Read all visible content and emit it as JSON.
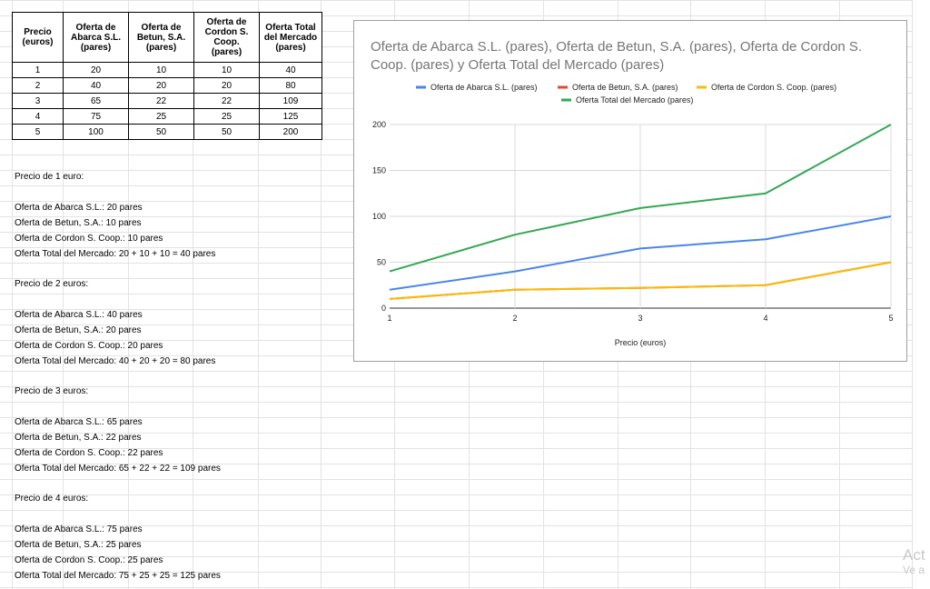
{
  "table": {
    "headers": [
      "Precio (euros)",
      "Oferta de Abarca S.L. (pares)",
      "Oferta de Betun, S.A. (pares)",
      "Oferta de Cordon S. Coop. (pares)",
      "Oferta Total del Mercado (pares)"
    ],
    "header_lines": [
      [
        "Precio",
        "(euros)"
      ],
      [
        "Oferta de",
        "Abarca S.L.",
        "(pares)"
      ],
      [
        "Oferta de",
        "Betun, S.A.",
        "(pares)"
      ],
      [
        "Oferta de",
        "Cordon S.",
        "Coop.",
        "(pares)"
      ],
      [
        "Oferta Total",
        "del Mercado",
        "(pares)"
      ]
    ],
    "rows": [
      [
        "1",
        "20",
        "10",
        "10",
        "40"
      ],
      [
        "2",
        "40",
        "20",
        "20",
        "80"
      ],
      [
        "3",
        "65",
        "22",
        "22",
        "109"
      ],
      [
        "4",
        "75",
        "25",
        "25",
        "125"
      ],
      [
        "5",
        "100",
        "50",
        "50",
        "200"
      ]
    ]
  },
  "notes": [
    "Precio de 1 euro:",
    "Oferta de Abarca S.L.: 20 pares",
    "Oferta de Betun, S.A.: 10 pares",
    "Oferta de Cordon S. Coop.: 10 pares",
    "Oferta Total del Mercado: 20 + 10 + 10 = 40 pares",
    "Precio de 2 euros:",
    "Oferta de Abarca S.L.: 40 pares",
    "Oferta de Betun, S.A.: 20 pares",
    "Oferta de Cordon S. Coop.: 20 pares",
    "Oferta Total del Mercado: 40 + 20 + 20 = 80 pares",
    "Precio de 3 euros:",
    "Oferta de Abarca S.L.: 65 pares",
    "Oferta de Betun, S.A.: 22 pares",
    "Oferta de Cordon S. Coop.: 22 pares",
    "Oferta Total del Mercado: 65 + 22 + 22 = 109 pares",
    "Precio de 4 euros:",
    "Oferta de Abarca S.L.: 75 pares",
    "Oferta de Betun, S.A.: 25 pares",
    "Oferta de Cordon S. Coop.: 25 pares",
    "Oferta Total del Mercado: 75 + 25 + 25 = 125 pares"
  ],
  "chart_data": {
    "type": "line",
    "title": "Oferta de Abarca S.L. (pares), Oferta de Betun, S.A. (pares), Oferta de Cordon S. Coop. (pares) y Oferta Total del Mercado (pares)",
    "xlabel": "Precio (euros)",
    "ylabel": "",
    "x": [
      1,
      2,
      3,
      4,
      5
    ],
    "xlim": [
      1,
      5
    ],
    "ylim": [
      0,
      200
    ],
    "yticks": [
      0,
      50,
      100,
      150,
      200
    ],
    "grid": true,
    "legend_position": "top",
    "series": [
      {
        "name": "Oferta de Abarca S.L. (pares)",
        "values": [
          20,
          40,
          65,
          75,
          100
        ],
        "color": "#4a86e8"
      },
      {
        "name": "Oferta de Betun, S.A. (pares)",
        "values": [
          10,
          20,
          22,
          25,
          50
        ],
        "color": "#ea4335"
      },
      {
        "name": "Oferta de Cordon S. Coop. (pares)",
        "values": [
          10,
          20,
          22,
          25,
          50
        ],
        "color": "#fbbc04"
      },
      {
        "name": "Oferta Total del Mercado (pares)",
        "values": [
          40,
          80,
          109,
          125,
          200
        ],
        "color": "#34a853"
      }
    ]
  },
  "watermark": {
    "line1": "Act",
    "line2": "Ve a"
  }
}
